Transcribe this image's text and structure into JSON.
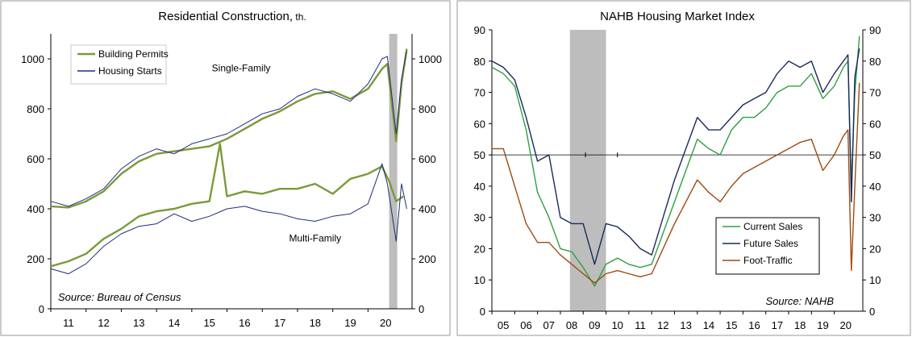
{
  "chart_data": [
    {
      "type": "line",
      "title": "Residential Construction,",
      "title_unit": "th.",
      "source": "Source: Bureau of Census",
      "ylim": [
        0,
        1100
      ],
      "yticks": [
        0,
        200,
        400,
        600,
        800,
        1000
      ],
      "xlim": [
        2010.5,
        2020.75
      ],
      "xticks": [
        2011,
        2012,
        2013,
        2014,
        2015,
        2016,
        2017,
        2018,
        2019,
        2020
      ],
      "xtick_labels": [
        "11",
        "12",
        "13",
        "14",
        "15",
        "16",
        "17",
        "18",
        "19",
        "20"
      ],
      "recession": [
        2020.1,
        2020.33
      ],
      "annotations": [
        {
          "text": "Single-Family",
          "x": 2015.9,
          "y": 950
        },
        {
          "text": "Multi-Family",
          "x": 2018.0,
          "y": 270
        }
      ],
      "legend_position": "top-left",
      "legend": [
        {
          "label": "Building Permits",
          "color": "#7a9a3a"
        },
        {
          "label": "Housing Starts",
          "color": "#1f2d7a"
        }
      ],
      "series": [
        {
          "name": "Building Permits",
          "group": "Single-Family",
          "color": "#7a9a3a",
          "x": [
            2010.5,
            2011.0,
            2011.5,
            2012.0,
            2012.5,
            2013.0,
            2013.5,
            2014.0,
            2014.5,
            2015.0,
            2015.5,
            2016.0,
            2016.5,
            2017.0,
            2017.5,
            2018.0,
            2018.5,
            2019.0,
            2019.5,
            2019.9,
            2020.05,
            2020.3,
            2020.45,
            2020.6
          ],
          "y": [
            410,
            405,
            430,
            470,
            540,
            590,
            620,
            630,
            640,
            650,
            680,
            720,
            760,
            790,
            830,
            860,
            870,
            840,
            880,
            960,
            980,
            670,
            900,
            1040
          ]
        },
        {
          "name": "Housing Starts",
          "group": "Single-Family",
          "color": "#1f2d7a",
          "x": [
            2010.5,
            2011.0,
            2011.5,
            2012.0,
            2012.5,
            2013.0,
            2013.5,
            2014.0,
            2014.5,
            2015.0,
            2015.5,
            2016.0,
            2016.5,
            2017.0,
            2017.5,
            2018.0,
            2018.5,
            2019.0,
            2019.5,
            2019.9,
            2020.05,
            2020.3,
            2020.45,
            2020.6
          ],
          "y": [
            430,
            410,
            440,
            480,
            560,
            610,
            640,
            620,
            660,
            680,
            700,
            740,
            780,
            800,
            850,
            880,
            860,
            830,
            900,
            1000,
            1010,
            700,
            920,
            1030
          ]
        },
        {
          "name": "Building Permits",
          "group": "Multi-Family",
          "color": "#7a9a3a",
          "x": [
            2010.5,
            2011.0,
            2011.5,
            2012.0,
            2012.5,
            2013.0,
            2013.5,
            2014.0,
            2014.5,
            2015.0,
            2015.3,
            2015.5,
            2016.0,
            2016.5,
            2017.0,
            2017.5,
            2018.0,
            2018.5,
            2019.0,
            2019.5,
            2019.9,
            2020.1,
            2020.3,
            2020.5
          ],
          "y": [
            170,
            190,
            220,
            280,
            320,
            370,
            390,
            400,
            420,
            430,
            660,
            450,
            470,
            460,
            480,
            480,
            500,
            460,
            520,
            540,
            570,
            510,
            430,
            450
          ]
        },
        {
          "name": "Housing Starts",
          "group": "Multi-Family",
          "color": "#1f2d7a",
          "x": [
            2010.5,
            2011.0,
            2011.5,
            2012.0,
            2012.5,
            2013.0,
            2013.5,
            2014.0,
            2014.5,
            2015.0,
            2015.5,
            2016.0,
            2016.5,
            2017.0,
            2017.5,
            2018.0,
            2018.5,
            2019.0,
            2019.5,
            2019.9,
            2020.05,
            2020.3,
            2020.45,
            2020.6
          ],
          "y": [
            160,
            140,
            180,
            250,
            300,
            330,
            340,
            380,
            350,
            370,
            400,
            410,
            390,
            380,
            360,
            350,
            370,
            380,
            420,
            580,
            500,
            270,
            500,
            400
          ]
        }
      ]
    },
    {
      "type": "line",
      "title": "NAHB Housing Market Index",
      "source": "Source: NAHB",
      "ylim": [
        0,
        90
      ],
      "yticks": [
        0,
        10,
        20,
        30,
        40,
        50,
        60,
        70,
        80,
        90
      ],
      "xlim": [
        2004.5,
        2020.75
      ],
      "xticks": [
        2005,
        2006,
        2007,
        2008,
        2009,
        2010,
        2011,
        2012,
        2013,
        2014,
        2015,
        2016,
        2017,
        2018,
        2019,
        2020
      ],
      "xtick_labels": [
        "05",
        "06",
        "07",
        "08",
        "09",
        "10",
        "11",
        "12",
        "13",
        "14",
        "15",
        "16",
        "17",
        "18",
        "19",
        "20"
      ],
      "recession": [
        2007.92,
        2009.5
      ],
      "reference_line": 50,
      "legend_position": "bottom-right",
      "legend": [
        {
          "label": "Current Sales",
          "color": "#2ea043"
        },
        {
          "label": "Future Sales",
          "color": "#1a2a5a"
        },
        {
          "label": "Foot-Traffic",
          "color": "#a04a10"
        }
      ],
      "series": [
        {
          "name": "Current Sales",
          "color": "#2ea043",
          "x": [
            2004.5,
            2005.0,
            2005.5,
            2006.0,
            2006.5,
            2007.0,
            2007.5,
            2008.0,
            2008.5,
            2009.0,
            2009.5,
            2010.0,
            2010.5,
            2011.0,
            2011.5,
            2012.0,
            2012.5,
            2013.0,
            2013.5,
            2014.0,
            2014.5,
            2015.0,
            2015.5,
            2016.0,
            2016.5,
            2017.0,
            2017.5,
            2018.0,
            2018.5,
            2019.0,
            2019.5,
            2019.9,
            2020.1,
            2020.25,
            2020.4,
            2020.6
          ],
          "y": [
            78,
            76,
            72,
            58,
            38,
            30,
            20,
            19,
            14,
            8,
            15,
            17,
            15,
            14,
            15,
            25,
            35,
            45,
            55,
            52,
            50,
            58,
            62,
            62,
            65,
            70,
            72,
            72,
            76,
            68,
            72,
            78,
            80,
            40,
            70,
            88
          ]
        },
        {
          "name": "Future Sales",
          "color": "#1a2a5a",
          "x": [
            2004.5,
            2005.0,
            2005.5,
            2006.0,
            2006.5,
            2007.0,
            2007.5,
            2008.0,
            2008.5,
            2009.0,
            2009.5,
            2010.0,
            2010.5,
            2011.0,
            2011.5,
            2012.0,
            2012.5,
            2013.0,
            2013.5,
            2014.0,
            2014.5,
            2015.0,
            2015.5,
            2016.0,
            2016.5,
            2017.0,
            2017.5,
            2018.0,
            2018.5,
            2019.0,
            2019.5,
            2019.9,
            2020.1,
            2020.25,
            2020.4,
            2020.6
          ],
          "y": [
            80,
            78,
            74,
            62,
            48,
            50,
            30,
            28,
            28,
            15,
            28,
            27,
            24,
            20,
            18,
            30,
            42,
            52,
            62,
            58,
            58,
            62,
            66,
            68,
            70,
            76,
            80,
            78,
            80,
            70,
            76,
            80,
            82,
            35,
            75,
            84
          ]
        },
        {
          "name": "Foot-Traffic",
          "color": "#a04a10",
          "x": [
            2004.5,
            2005.0,
            2005.5,
            2006.0,
            2006.5,
            2007.0,
            2007.5,
            2008.0,
            2008.5,
            2009.0,
            2009.5,
            2010.0,
            2010.5,
            2011.0,
            2011.5,
            2012.0,
            2012.5,
            2013.0,
            2013.5,
            2014.0,
            2014.5,
            2015.0,
            2015.5,
            2016.0,
            2016.5,
            2017.0,
            2017.5,
            2018.0,
            2018.5,
            2019.0,
            2019.5,
            2019.9,
            2020.1,
            2020.25,
            2020.4,
            2020.6
          ],
          "y": [
            52,
            52,
            40,
            28,
            22,
            22,
            18,
            15,
            12,
            9,
            12,
            13,
            12,
            11,
            12,
            20,
            28,
            35,
            42,
            38,
            35,
            40,
            44,
            46,
            48,
            50,
            52,
            54,
            55,
            45,
            50,
            56,
            58,
            13,
            40,
            73
          ]
        }
      ]
    }
  ]
}
